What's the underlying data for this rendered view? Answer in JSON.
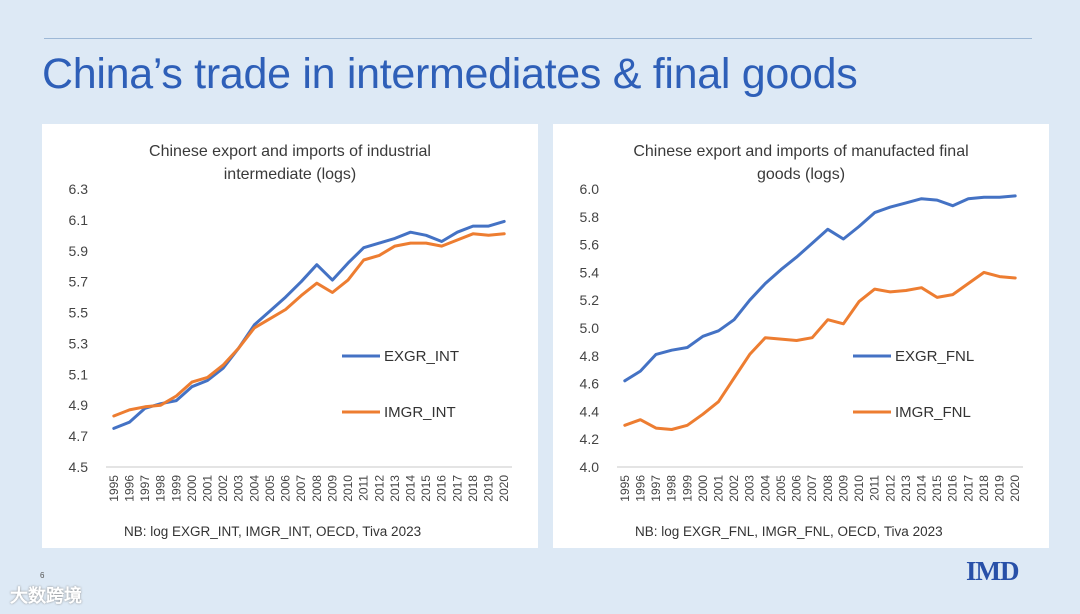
{
  "slide": {
    "title": "China’s trade in intermediates & final goods",
    "page_number": "6",
    "logo": "IMD",
    "watermark": "大数跨境"
  },
  "chart_data": [
    {
      "type": "line",
      "title_lines": [
        "Chinese export and imports of industrial",
        "intermediate  (logs)"
      ],
      "categories": [
        "1995",
        "1996",
        "1997",
        "1998",
        "1999",
        "2000",
        "2001",
        "2002",
        "2003",
        "2004",
        "2005",
        "2006",
        "2007",
        "2008",
        "2009",
        "2010",
        "2011",
        "2012",
        "2013",
        "2014",
        "2015",
        "2016",
        "2017",
        "2018",
        "2019",
        "2020"
      ],
      "ylim": [
        4.5,
        6.3
      ],
      "yticks": [
        "6.3",
        "6.1",
        "5.9",
        "5.7",
        "5.5",
        "5.3",
        "5.1",
        "4.9",
        "4.7",
        "4.5"
      ],
      "grid": false,
      "series": [
        {
          "name": "EXGR_INT",
          "color": "#4472c4",
          "values": [
            4.75,
            4.79,
            4.88,
            4.91,
            4.93,
            5.02,
            5.06,
            5.14,
            5.27,
            5.42,
            5.51,
            5.6,
            5.7,
            5.81,
            5.71,
            5.82,
            5.92,
            5.95,
            5.98,
            6.02,
            6.0,
            5.96,
            6.02,
            6.06,
            6.06,
            6.09
          ]
        },
        {
          "name": "IMGR_INT",
          "color": "#ed7d31",
          "values": [
            4.83,
            4.87,
            4.89,
            4.9,
            4.96,
            5.05,
            5.08,
            5.16,
            5.27,
            5.4,
            5.46,
            5.52,
            5.61,
            5.69,
            5.63,
            5.71,
            5.84,
            5.87,
            5.93,
            5.95,
            5.95,
            5.93,
            5.97,
            6.01,
            6.0,
            6.01
          ]
        }
      ],
      "note": "NB: log EXGR_INT, IMGR_INT, OECD, Tiva 2023"
    },
    {
      "type": "line",
      "title_lines": [
        "Chinese export and imports of manufacted final",
        "goods (logs)"
      ],
      "categories": [
        "1995",
        "1996",
        "1997",
        "1998",
        "1999",
        "2000",
        "2001",
        "2002",
        "2003",
        "2004",
        "2005",
        "2006",
        "2007",
        "2008",
        "2009",
        "2010",
        "2011",
        "2012",
        "2013",
        "2014",
        "2015",
        "2016",
        "2017",
        "2018",
        "2019",
        "2020"
      ],
      "ylim": [
        4.0,
        6.0
      ],
      "yticks": [
        "6.0",
        "5.8",
        "5.6",
        "5.4",
        "5.2",
        "5.0",
        "4.8",
        "4.6",
        "4.4",
        "4.2",
        "4.0"
      ],
      "grid": false,
      "series": [
        {
          "name": "EXGR_FNL",
          "color": "#4472c4",
          "values": [
            4.62,
            4.69,
            4.81,
            4.84,
            4.86,
            4.94,
            4.98,
            5.06,
            5.2,
            5.32,
            5.42,
            5.51,
            5.61,
            5.71,
            5.64,
            5.73,
            5.83,
            5.87,
            5.9,
            5.93,
            5.92,
            5.88,
            5.93,
            5.94,
            5.94,
            5.95
          ]
        },
        {
          "name": "IMGR_FNL",
          "color": "#ed7d31",
          "values": [
            4.3,
            4.34,
            4.28,
            4.27,
            4.3,
            4.38,
            4.47,
            4.64,
            4.81,
            4.93,
            4.92,
            4.91,
            4.93,
            5.06,
            5.03,
            5.19,
            5.28,
            5.26,
            5.27,
            5.29,
            5.22,
            5.24,
            5.32,
            5.4,
            5.37,
            5.36
          ]
        }
      ],
      "note": "NB: log EXGR_FNL, IMGR_FNL, OECD, Tiva 2023"
    }
  ]
}
